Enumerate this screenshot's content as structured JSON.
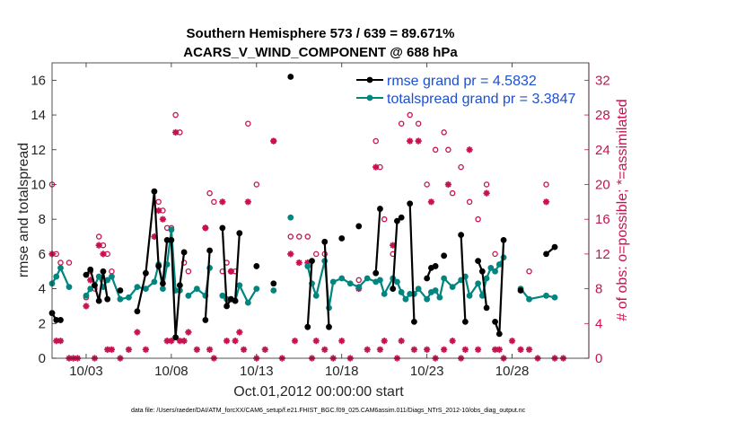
{
  "chart_data": {
    "type": "line",
    "title_line1": "Southern Hemisphere 573 / 639 = 89.671%",
    "title_line2": "ACARS_V_WIND_COMPONENT @ 688 hPa",
    "xlabel": "Oct.01,2012 00:00:00 start",
    "ylabel_left": "rmse and totalspread",
    "ylabel_right": "# of obs: o=possible; *=assimilated",
    "xlim": [
      1,
      32.5
    ],
    "ylim_left": [
      0,
      17
    ],
    "ylim_right": [
      0,
      34
    ],
    "x_ticks": [
      3,
      8,
      13,
      18,
      23,
      28
    ],
    "x_tick_labels": [
      "10/03",
      "10/08",
      "10/13",
      "10/18",
      "10/23",
      "10/28"
    ],
    "y_ticks_left": [
      "0",
      "2",
      "4",
      "6",
      "8",
      "10",
      "12",
      "14",
      "16"
    ],
    "y_ticks_right": [
      "0",
      "4",
      "8",
      "12",
      "16",
      "20",
      "24",
      "28",
      "32"
    ],
    "colors": {
      "rmse": "#000000",
      "spread": "#00857f",
      "obs": "#c8124f",
      "legend_text": "#1a4fd6"
    },
    "series": [
      {
        "name": "rmse grand pr = 4.5832",
        "values": [
          [
            1.0,
            2.6
          ],
          [
            1.25,
            2.2
          ],
          [
            1.5,
            2.2
          ],
          [
            2.0,
            null
          ],
          [
            2.5,
            null
          ],
          [
            3.0,
            4.8
          ],
          [
            3.25,
            5.1
          ],
          [
            3.5,
            4.2
          ],
          [
            3.75,
            3.3
          ],
          [
            4.0,
            5.0
          ],
          [
            4.25,
            3.4
          ],
          [
            4.5,
            null
          ],
          [
            5.0,
            3.9
          ],
          [
            5.5,
            null
          ],
          [
            6.0,
            2.7
          ],
          [
            6.5,
            4.9
          ],
          [
            7.0,
            9.6
          ],
          [
            7.25,
            5.3
          ],
          [
            7.5,
            4.3
          ],
          [
            7.75,
            6.8
          ],
          [
            8.0,
            6.8
          ],
          [
            8.25,
            1.2
          ],
          [
            8.5,
            4.2
          ],
          [
            8.75,
            6.1
          ],
          [
            9.0,
            null
          ],
          [
            9.5,
            null
          ],
          [
            10.0,
            2.2
          ],
          [
            10.25,
            6.2
          ],
          [
            10.5,
            null
          ],
          [
            11.0,
            7.5
          ],
          [
            11.25,
            3.0
          ],
          [
            11.5,
            3.4
          ],
          [
            11.75,
            3.3
          ],
          [
            12.0,
            7.2
          ],
          [
            12.5,
            null
          ],
          [
            13.0,
            5.3
          ],
          [
            13.5,
            null
          ],
          [
            14.0,
            4.3
          ],
          [
            14.5,
            null
          ],
          [
            15.0,
            16.2
          ],
          [
            15.5,
            null
          ],
          [
            16.0,
            1.8
          ],
          [
            16.25,
            5.6
          ],
          [
            16.5,
            null
          ],
          [
            17.0,
            6.7
          ],
          [
            17.25,
            1.8
          ],
          [
            17.5,
            null
          ],
          [
            18.0,
            6.9
          ],
          [
            18.5,
            null
          ],
          [
            19.0,
            7.6
          ],
          [
            19.5,
            null
          ],
          [
            20.0,
            4.9
          ],
          [
            20.25,
            8.6
          ],
          [
            20.5,
            null
          ],
          [
            21.0,
            4.0
          ],
          [
            21.25,
            7.9
          ],
          [
            21.5,
            8.1
          ],
          [
            21.75,
            null
          ],
          [
            22.0,
            8.9
          ],
          [
            22.25,
            2.1
          ],
          [
            22.5,
            null
          ],
          [
            23.0,
            4.6
          ],
          [
            23.25,
            5.2
          ],
          [
            23.5,
            5.3
          ],
          [
            23.75,
            null
          ],
          [
            24.0,
            5.9
          ],
          [
            24.5,
            null
          ],
          [
            25.0,
            7.1
          ],
          [
            25.25,
            2.1
          ],
          [
            25.5,
            null
          ],
          [
            26.0,
            5.6
          ],
          [
            26.25,
            5.0
          ],
          [
            26.5,
            2.9
          ],
          [
            26.75,
            null
          ],
          [
            27.0,
            2.1
          ],
          [
            27.25,
            1.4
          ],
          [
            27.5,
            6.8
          ],
          [
            27.75,
            null
          ],
          [
            28.5,
            3.9
          ],
          [
            29.0,
            null
          ],
          [
            30.0,
            6.0
          ],
          [
            30.5,
            6.4
          ]
        ]
      },
      {
        "name": "totalspread grand pr = 3.3847",
        "values": [
          [
            1.0,
            4.3
          ],
          [
            1.25,
            4.7
          ],
          [
            1.5,
            5.2
          ],
          [
            2.0,
            4.1
          ],
          [
            2.5,
            null
          ],
          [
            3.0,
            3.6
          ],
          [
            3.25,
            4.0
          ],
          [
            3.5,
            4.2
          ],
          [
            3.75,
            4.7
          ],
          [
            4.0,
            4.1
          ],
          [
            4.25,
            4.5
          ],
          [
            4.5,
            4.7
          ],
          [
            5.0,
            3.4
          ],
          [
            5.5,
            3.5
          ],
          [
            6.0,
            4.1
          ],
          [
            6.5,
            4.0
          ],
          [
            7.0,
            4.4
          ],
          [
            7.25,
            5.4
          ],
          [
            7.5,
            4.0
          ],
          [
            7.75,
            5.4
          ],
          [
            8.0,
            7.4
          ],
          [
            8.25,
            3.9
          ],
          [
            8.5,
            3.9
          ],
          [
            8.75,
            null
          ],
          [
            9.0,
            3.6
          ],
          [
            9.5,
            4.0
          ],
          [
            10.0,
            3.6
          ],
          [
            10.25,
            5.2
          ],
          [
            10.5,
            null
          ],
          [
            11.0,
            3.6
          ],
          [
            11.25,
            3.4
          ],
          [
            11.5,
            3.4
          ],
          [
            11.75,
            3.3
          ],
          [
            12.0,
            4.2
          ],
          [
            12.5,
            3.2
          ],
          [
            13.0,
            4.0
          ],
          [
            13.5,
            null
          ],
          [
            14.0,
            3.9
          ],
          [
            14.5,
            null
          ],
          [
            15.0,
            8.1
          ],
          [
            15.5,
            null
          ],
          [
            16.0,
            5.3
          ],
          [
            16.25,
            4.3
          ],
          [
            16.5,
            3.6
          ],
          [
            17.0,
            5.6
          ],
          [
            17.25,
            2.9
          ],
          [
            17.5,
            4.4
          ],
          [
            18.0,
            4.6
          ],
          [
            18.5,
            4.3
          ],
          [
            19.0,
            4.1
          ],
          [
            19.5,
            4.6
          ],
          [
            20.0,
            4.4
          ],
          [
            20.25,
            4.5
          ],
          [
            20.5,
            3.7
          ],
          [
            21.0,
            4.6
          ],
          [
            21.25,
            4.4
          ],
          [
            21.5,
            3.8
          ],
          [
            21.75,
            3.4
          ],
          [
            22.0,
            3.7
          ],
          [
            22.25,
            3.7
          ],
          [
            22.5,
            4.0
          ],
          [
            23.0,
            3.4
          ],
          [
            23.25,
            3.8
          ],
          [
            23.5,
            3.9
          ],
          [
            23.75,
            3.5
          ],
          [
            24.0,
            4.6
          ],
          [
            24.5,
            4.1
          ],
          [
            25.0,
            4.5
          ],
          [
            25.25,
            4.7
          ],
          [
            25.5,
            3.6
          ],
          [
            26.0,
            4.3
          ],
          [
            26.25,
            3.6
          ],
          [
            26.5,
            4.6
          ],
          [
            26.75,
            5.2
          ],
          [
            27.0,
            5.0
          ],
          [
            27.25,
            5.4
          ],
          [
            27.5,
            5.8
          ],
          [
            27.75,
            null
          ],
          [
            28.5,
            4.0
          ],
          [
            29.0,
            3.4
          ],
          [
            30.0,
            3.6
          ],
          [
            30.5,
            3.5
          ]
        ]
      }
    ],
    "obs_possible": [
      [
        1.0,
        20
      ],
      [
        1.25,
        12
      ],
      [
        1.5,
        11
      ],
      [
        2.0,
        11
      ],
      [
        3.0,
        7
      ],
      [
        3.25,
        10
      ],
      [
        3.5,
        8
      ],
      [
        3.75,
        14
      ],
      [
        4.0,
        13
      ],
      [
        4.25,
        12
      ],
      [
        4.5,
        10
      ],
      [
        7.25,
        18
      ],
      [
        7.5,
        17
      ],
      [
        7.75,
        15
      ],
      [
        8.0,
        15
      ],
      [
        8.25,
        28
      ],
      [
        8.5,
        26
      ],
      [
        8.75,
        11
      ],
      [
        9.0,
        10
      ],
      [
        10.0,
        15
      ],
      [
        10.25,
        19
      ],
      [
        10.5,
        18
      ],
      [
        11.0,
        10
      ],
      [
        11.25,
        11
      ],
      [
        11.5,
        10
      ],
      [
        11.75,
        10
      ],
      [
        12.5,
        27
      ],
      [
        13.0,
        20
      ],
      [
        14.0,
        25
      ],
      [
        15.0,
        14
      ],
      [
        15.5,
        14
      ],
      [
        16.0,
        14
      ],
      [
        16.5,
        12
      ],
      [
        17.0,
        12
      ],
      [
        19.0,
        9
      ],
      [
        20.0,
        25
      ],
      [
        20.25,
        22
      ],
      [
        20.5,
        16
      ],
      [
        21.0,
        12
      ],
      [
        21.5,
        27
      ],
      [
        22.0,
        28
      ],
      [
        22.5,
        27
      ],
      [
        23.0,
        20
      ],
      [
        23.5,
        24
      ],
      [
        24.0,
        26
      ],
      [
        24.25,
        24
      ],
      [
        24.5,
        19
      ],
      [
        25.0,
        22
      ],
      [
        25.5,
        18
      ],
      [
        26.0,
        16
      ],
      [
        26.5,
        20
      ],
      [
        27.0,
        12
      ],
      [
        28.5,
        8
      ],
      [
        29.0,
        10
      ],
      [
        30.0,
        20
      ]
    ],
    "obs_assimilated": [
      [
        1.0,
        12
      ],
      [
        1.25,
        2
      ],
      [
        1.5,
        2
      ],
      [
        2.0,
        0
      ],
      [
        2.25,
        0
      ],
      [
        2.5,
        0
      ],
      [
        3.0,
        6
      ],
      [
        3.25,
        9
      ],
      [
        3.5,
        0
      ],
      [
        3.75,
        13
      ],
      [
        4.0,
        12
      ],
      [
        4.25,
        1
      ],
      [
        4.5,
        1
      ],
      [
        5.0,
        0
      ],
      [
        5.5,
        1
      ],
      [
        6.0,
        3
      ],
      [
        6.5,
        1
      ],
      [
        7.0,
        14
      ],
      [
        7.25,
        17
      ],
      [
        7.5,
        16
      ],
      [
        7.75,
        2
      ],
      [
        8.0,
        2
      ],
      [
        8.25,
        26
      ],
      [
        8.5,
        2
      ],
      [
        8.75,
        2
      ],
      [
        9.0,
        3
      ],
      [
        9.5,
        1
      ],
      [
        10.0,
        15
      ],
      [
        10.25,
        1
      ],
      [
        10.5,
        0
      ],
      [
        11.0,
        18
      ],
      [
        11.25,
        2
      ],
      [
        11.5,
        10
      ],
      [
        11.75,
        2
      ],
      [
        12.0,
        3
      ],
      [
        12.25,
        1
      ],
      [
        12.5,
        18
      ],
      [
        13.0,
        0
      ],
      [
        13.5,
        1
      ],
      [
        14.0,
        25
      ],
      [
        14.5,
        0
      ],
      [
        15.0,
        12
      ],
      [
        15.25,
        2
      ],
      [
        15.5,
        11
      ],
      [
        16.0,
        11
      ],
      [
        16.25,
        0
      ],
      [
        16.5,
        2
      ],
      [
        17.0,
        1
      ],
      [
        17.5,
        0
      ],
      [
        18.0,
        2
      ],
      [
        18.5,
        0
      ],
      [
        19.0,
        8
      ],
      [
        19.5,
        1
      ],
      [
        20.0,
        22
      ],
      [
        20.25,
        1
      ],
      [
        20.5,
        2
      ],
      [
        21.0,
        13
      ],
      [
        21.25,
        0
      ],
      [
        21.5,
        2
      ],
      [
        22.0,
        25
      ],
      [
        22.25,
        1
      ],
      [
        22.5,
        25
      ],
      [
        23.0,
        1
      ],
      [
        23.25,
        18
      ],
      [
        23.5,
        0
      ],
      [
        24.0,
        1
      ],
      [
        24.25,
        20
      ],
      [
        24.5,
        2
      ],
      [
        25.0,
        0
      ],
      [
        25.25,
        1
      ],
      [
        25.5,
        24
      ],
      [
        26.0,
        1
      ],
      [
        26.5,
        19
      ],
      [
        27.0,
        1
      ],
      [
        27.25,
        1
      ],
      [
        27.5,
        0
      ],
      [
        28.0,
        2
      ],
      [
        28.5,
        1
      ],
      [
        29.0,
        1
      ],
      [
        29.5,
        0
      ],
      [
        30.0,
        18
      ],
      [
        30.5,
        0
      ],
      [
        31.0,
        0
      ]
    ]
  },
  "footer": "data file: /Users/raeder/DAI/ATM_forcXX/CAM6_setup/f.e21.FHIST_BGC.f09_025.CAM6assim.011/Diags_NTrS_2012-10/obs_diag_output.nc"
}
